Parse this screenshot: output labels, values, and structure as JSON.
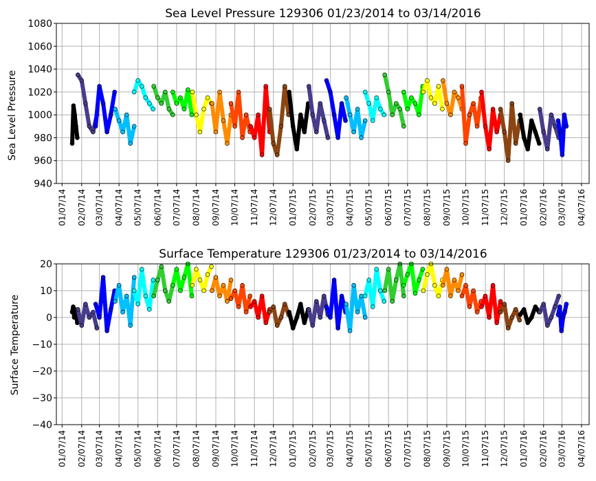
{
  "chart_data": [
    {
      "type": "scatter",
      "title": "Sea Level Pressure 129306  01/23/2014 to 03/14/2016",
      "xlabel": "",
      "ylabel": "Sea Level Pressure",
      "ylim": [
        940,
        1080
      ],
      "yticks": [
        "940",
        "960",
        "980",
        "1000",
        "1020",
        "1040",
        "1060",
        "1080"
      ],
      "xlim": [
        "2013-12-29",
        "2016-04-19"
      ],
      "xticks": [
        "01/07/14",
        "02/07/14",
        "03/07/14",
        "04/07/14",
        "05/07/14",
        "06/07/14",
        "07/07/14",
        "08/07/14",
        "09/07/14",
        "10/07/14",
        "11/07/14",
        "12/07/14",
        "01/07/15",
        "02/07/15",
        "03/07/15",
        "04/07/15",
        "05/07/15",
        "06/07/15",
        "07/07/15",
        "08/07/15",
        "09/07/15",
        "10/07/15",
        "11/07/15",
        "12/07/15",
        "01/07/16",
        "02/07/16",
        "03/07/16",
        "04/07/16"
      ],
      "grid": true,
      "series_by_month": [
        {
          "month": "2014-01",
          "color": "#000000",
          "values": [
            975,
            1008,
            1000,
            990,
            980
          ]
        },
        {
          "month": "2014-02",
          "color": "#483D8B",
          "values": [
            1035,
            1030,
            1010,
            990,
            985,
            1000
          ]
        },
        {
          "month": "2014-03",
          "color": "#0000FF",
          "values": [
            990,
            1025,
            1010,
            985,
            1000,
            1020
          ]
        },
        {
          "month": "2014-04",
          "color": "#00BFFF",
          "values": [
            1005,
            995,
            985,
            1000,
            975,
            990
          ]
        },
        {
          "month": "2014-05",
          "color": "#00FFFF",
          "values": [
            1020,
            1030,
            1025,
            1015,
            1010,
            1005
          ]
        },
        {
          "month": "2014-06",
          "color": "#32CD32",
          "values": [
            1025,
            1015,
            1010,
            1020,
            1005,
            1000
          ]
        },
        {
          "month": "2014-07",
          "color": "#00FF00",
          "values": [
            1020,
            1010,
            1015,
            1005,
            1022,
            1000
          ]
        },
        {
          "month": "2014-08",
          "color": "#FFFF00",
          "values": [
            1020,
            1000,
            985,
            1005,
            1015,
            1010
          ]
        },
        {
          "month": "2014-09",
          "color": "#FF8C00",
          "values": [
            1010,
            985,
            1020,
            995,
            975,
            1000
          ]
        },
        {
          "month": "2014-10",
          "color": "#FF4500",
          "values": [
            1010,
            990,
            1020,
            980,
            1000,
            985
          ]
        },
        {
          "month": "2014-11",
          "color": "#FF0000",
          "values": [
            990,
            980,
            1000,
            965,
            1025,
            985
          ]
        },
        {
          "month": "2014-12",
          "color": "#8B4513",
          "values": [
            1005,
            975,
            965,
            990,
            1025,
            1000
          ]
        },
        {
          "month": "2015-01",
          "color": "#000000",
          "values": [
            1020,
            990,
            970,
            1000,
            985,
            1010
          ]
        },
        {
          "month": "2015-02",
          "color": "#483D8B",
          "values": [
            1025,
            1000,
            985,
            1010,
            995,
            980
          ]
        },
        {
          "month": "2015-03",
          "color": "#0000FF",
          "values": [
            1030,
            1020,
            1000,
            980,
            1010,
            995
          ]
        },
        {
          "month": "2015-04",
          "color": "#00BFFF",
          "values": [
            1015,
            1000,
            985,
            1005,
            980,
            995
          ]
        },
        {
          "month": "2015-05",
          "color": "#00FFFF",
          "values": [
            1020,
            1010,
            995,
            1015,
            1005,
            1000
          ]
        },
        {
          "month": "2015-06",
          "color": "#32CD32",
          "values": [
            1035,
            1020,
            1000,
            1010,
            1005,
            990
          ]
        },
        {
          "month": "2015-07",
          "color": "#00FF00",
          "values": [
            1020,
            1005,
            1015,
            1010,
            1000,
            1025
          ]
        },
        {
          "month": "2015-08",
          "color": "#FFFF00",
          "values": [
            1020,
            1030,
            1015,
            1010,
            1025,
            1005
          ]
        },
        {
          "month": "2015-09",
          "color": "#FF8C00",
          "values": [
            1030,
            1010,
            1000,
            1020,
            1015,
            1005
          ]
        },
        {
          "month": "2015-10",
          "color": "#FF4500",
          "values": [
            1025,
            975,
            1000,
            1010,
            990,
            1015
          ]
        },
        {
          "month": "2015-11",
          "color": "#FF0000",
          "values": [
            1020,
            990,
            970,
            1005,
            985,
            1000
          ]
        },
        {
          "month": "2015-12",
          "color": "#8B4513",
          "values": [
            1005,
            985,
            960,
            1010,
            975,
            995
          ]
        },
        {
          "month": "2016-01",
          "color": "#000000",
          "values": [
            1000,
            980,
            970,
            995,
            985,
            975
          ]
        },
        {
          "month": "2016-02",
          "color": "#483D8B",
          "values": [
            1005,
            985,
            970,
            1000,
            990,
            980
          ]
        },
        {
          "month": "2016-03",
          "color": "#0000FF",
          "values": [
            995,
            985,
            965,
            1000,
            990
          ]
        }
      ]
    },
    {
      "type": "scatter",
      "title": "Surface Temperature 129306  01/23/2014 to 03/14/2016",
      "xlabel": "",
      "ylabel": "Surface Temperature",
      "ylim": [
        -40,
        20
      ],
      "yticks": [
        "−40",
        "−30",
        "−20",
        "−10",
        "0",
        "10",
        "20"
      ],
      "xlim": [
        "2013-12-29",
        "2016-04-19"
      ],
      "xticks": [
        "01/07/14",
        "02/07/14",
        "03/07/14",
        "04/07/14",
        "05/07/14",
        "06/07/14",
        "07/07/14",
        "08/07/14",
        "09/07/14",
        "10/07/14",
        "11/07/14",
        "12/07/14",
        "01/07/15",
        "02/07/15",
        "03/07/15",
        "04/07/15",
        "05/07/15",
        "06/07/15",
        "07/07/15",
        "08/07/15",
        "09/07/15",
        "10/07/15",
        "11/07/15",
        "12/07/15",
        "01/07/16",
        "02/07/16",
        "03/07/16",
        "04/07/16"
      ],
      "grid": true,
      "series_by_month": [
        {
          "month": "2014-01",
          "color": "#000000",
          "values": [
            2,
            4,
            0,
            3,
            1,
            -2
          ]
        },
        {
          "month": "2014-02",
          "color": "#483D8B",
          "values": [
            3,
            -3,
            5,
            0,
            2,
            -4
          ]
        },
        {
          "month": "2014-03",
          "color": "#0000FF",
          "values": [
            5,
            0,
            15,
            -5,
            3,
            10
          ]
        },
        {
          "month": "2014-04",
          "color": "#00BFFF",
          "values": [
            6,
            12,
            2,
            8,
            -3,
            15
          ]
        },
        {
          "month": "2014-05",
          "color": "#00FFFF",
          "values": [
            10,
            5,
            18,
            8,
            3,
            14
          ]
        },
        {
          "month": "2014-06",
          "color": "#32CD32",
          "values": [
            8,
            14,
            19,
            10,
            6,
            12
          ]
        },
        {
          "month": "2014-07",
          "color": "#00FF00",
          "values": [
            12,
            18,
            10,
            15,
            20,
            8
          ]
        },
        {
          "month": "2014-08",
          "color": "#FFFF00",
          "values": [
            12,
            18,
            14,
            10,
            16,
            19
          ]
        },
        {
          "month": "2014-09",
          "color": "#FF8C00",
          "values": [
            10,
            15,
            8,
            12,
            6,
            14
          ]
        },
        {
          "month": "2014-10",
          "color": "#FF4500",
          "values": [
            7,
            10,
            4,
            12,
            2,
            8
          ]
        },
        {
          "month": "2014-11",
          "color": "#FF0000",
          "values": [
            4,
            6,
            0,
            8,
            -2,
            3
          ]
        },
        {
          "month": "2014-12",
          "color": "#8B4513",
          "values": [
            2,
            4,
            -3,
            0,
            5,
            1
          ]
        },
        {
          "month": "2015-01",
          "color": "#000000",
          "values": [
            2,
            -4,
            0,
            5,
            -2,
            3
          ]
        },
        {
          "month": "2015-02",
          "color": "#483D8B",
          "values": [
            3,
            -3,
            6,
            0,
            8,
            1
          ]
        },
        {
          "month": "2015-03",
          "color": "#0000FF",
          "values": [
            4,
            0,
            14,
            -4,
            8,
            2
          ]
        },
        {
          "month": "2015-04",
          "color": "#00BFFF",
          "values": [
            5,
            -5,
            12,
            2,
            8,
            0
          ]
        },
        {
          "month": "2015-05",
          "color": "#00FFFF",
          "values": [
            8,
            14,
            4,
            18,
            10,
            6
          ]
        },
        {
          "month": "2015-06",
          "color": "#32CD32",
          "values": [
            10,
            18,
            6,
            14,
            20,
            8
          ]
        },
        {
          "month": "2015-07",
          "color": "#00FF00",
          "values": [
            12,
            16,
            20,
            9,
            14,
            18
          ]
        },
        {
          "month": "2015-08",
          "color": "#FFFF00",
          "values": [
            10,
            16,
            20,
            12,
            8,
            14
          ]
        },
        {
          "month": "2015-09",
          "color": "#FF8C00",
          "values": [
            12,
            18,
            8,
            14,
            10,
            16
          ]
        },
        {
          "month": "2015-10",
          "color": "#FF4500",
          "values": [
            8,
            12,
            4,
            10,
            2,
            6
          ]
        },
        {
          "month": "2015-11",
          "color": "#FF0000",
          "values": [
            4,
            8,
            0,
            12,
            -2,
            6
          ]
        },
        {
          "month": "2015-12",
          "color": "#8B4513",
          "values": [
            2,
            5,
            -4,
            0,
            3,
            -1
          ]
        },
        {
          "month": "2016-01",
          "color": "#000000",
          "values": [
            1,
            3,
            -2,
            0,
            4,
            2
          ]
        },
        {
          "month": "2016-02",
          "color": "#483D8B",
          "values": [
            2,
            5,
            -3,
            0,
            4,
            8
          ]
        },
        {
          "month": "2016-03",
          "color": "#0000FF",
          "values": [
            1,
            4,
            -5,
            0,
            2,
            5
          ]
        }
      ]
    }
  ]
}
